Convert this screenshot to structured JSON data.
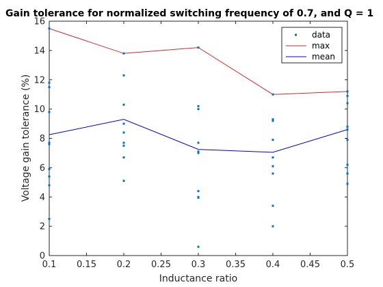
{
  "chart_data": {
    "type": "line",
    "title": "Gain tolerance for normalized switching frequency of 0.7, and Q = 1",
    "xlabel": "Inductance ratio",
    "ylabel": "Voltage gain tolerance (%)",
    "xlim": [
      0.1,
      0.5
    ],
    "ylim": [
      0,
      16
    ],
    "xticks": [
      0.1,
      0.15,
      0.2,
      0.25,
      0.3,
      0.35,
      0.4,
      0.45,
      0.5
    ],
    "xtick_labels": [
      "0.1",
      "0.15",
      "0.2",
      "0.25",
      "0.3",
      "0.35",
      "0.4",
      "0.45",
      "0.5"
    ],
    "yticks": [
      0,
      2,
      4,
      6,
      8,
      10,
      12,
      14,
      16
    ],
    "ytick_labels": [
      "0",
      "2",
      "4",
      "6",
      "8",
      "10",
      "12",
      "14",
      "16"
    ],
    "grid": false,
    "legend_position": "top-right",
    "series": [
      {
        "name": "data",
        "style": "points",
        "color": "#0072bd",
        "points": [
          [
            0.1,
            15.5
          ],
          [
            0.1,
            11.8
          ],
          [
            0.1,
            11.5
          ],
          [
            0.1,
            9.8
          ],
          [
            0.1,
            7.7
          ],
          [
            0.1,
            7.6
          ],
          [
            0.1,
            5.9
          ],
          [
            0.1,
            5.4
          ],
          [
            0.1,
            4.8
          ],
          [
            0.1,
            2.5
          ],
          [
            0.2,
            13.8
          ],
          [
            0.2,
            12.3
          ],
          [
            0.2,
            10.3
          ],
          [
            0.2,
            9.0
          ],
          [
            0.2,
            8.4
          ],
          [
            0.2,
            7.7
          ],
          [
            0.2,
            7.5
          ],
          [
            0.2,
            6.7
          ],
          [
            0.2,
            5.1
          ],
          [
            0.3,
            14.2
          ],
          [
            0.3,
            10.2
          ],
          [
            0.3,
            10.0
          ],
          [
            0.3,
            7.7
          ],
          [
            0.3,
            7.1
          ],
          [
            0.3,
            7.0
          ],
          [
            0.3,
            4.4
          ],
          [
            0.3,
            4.0
          ],
          [
            0.3,
            3.95
          ],
          [
            0.3,
            0.6
          ],
          [
            0.4,
            11.0
          ],
          [
            0.4,
            9.3
          ],
          [
            0.4,
            9.2
          ],
          [
            0.4,
            7.9
          ],
          [
            0.4,
            6.7
          ],
          [
            0.4,
            6.1
          ],
          [
            0.4,
            5.6
          ],
          [
            0.4,
            3.4
          ],
          [
            0.4,
            2.0
          ],
          [
            0.5,
            11.2
          ],
          [
            0.5,
            10.9
          ],
          [
            0.5,
            10.4
          ],
          [
            0.5,
            8.8
          ],
          [
            0.5,
            8.6
          ],
          [
            0.5,
            7.9
          ],
          [
            0.5,
            6.2
          ],
          [
            0.5,
            5.6
          ],
          [
            0.5,
            4.9
          ]
        ]
      },
      {
        "name": "max",
        "style": "line",
        "color": "#d62728",
        "x": [
          0.1,
          0.2,
          0.3,
          0.4,
          0.5
        ],
        "y": [
          15.5,
          13.8,
          14.2,
          11.0,
          11.2
        ]
      },
      {
        "name": "mean",
        "style": "line",
        "color": "#0000cc",
        "x": [
          0.1,
          0.2,
          0.3,
          0.4,
          0.5
        ],
        "y": [
          8.25,
          9.3,
          7.25,
          7.05,
          8.6
        ]
      }
    ]
  }
}
